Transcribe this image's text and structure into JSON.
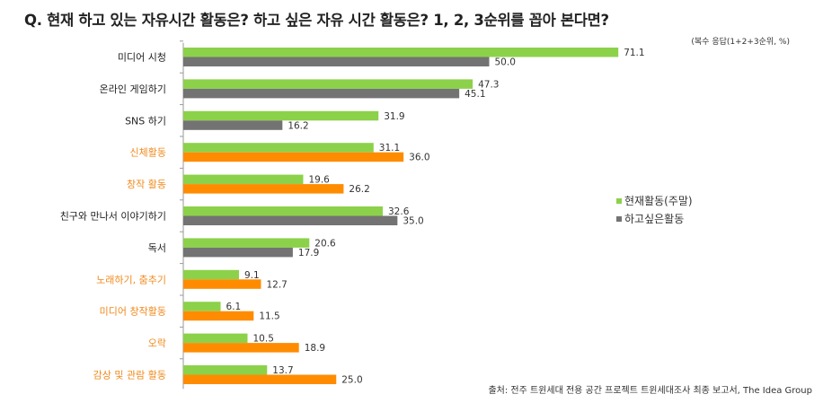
{
  "title": "Q. 현재 하고 있는 자유시간 활동은? 하고 싶은 자유 시간 활동은? 1, 2, 3순위를 꼽아 본다면?",
  "note": "(복수 응답(1+2+3순위, %)",
  "source": "출처: 전주 트윈세대 전용 공간 프로젝트 트윈세대조사 최종 보고서, The Idea Group",
  "colors": {
    "current": "#8cd14a",
    "wanted_gray": "#737373",
    "wanted_orange": "#ff8c00",
    "label_normal": "#222222",
    "label_highlight": "#f08a1c",
    "axis": "#9a9a9a"
  },
  "chart_data": {
    "type": "bar",
    "orientation": "horizontal",
    "categories": [
      "미디어 시청",
      "온라인 게임하기",
      "SNS 하기",
      "신체활동",
      "창작 활동",
      "친구와 만나서 이야기하기",
      "독서",
      "노래하기, 춤추기",
      "미디어 창작활동",
      "오락",
      "감상 및 관람 활동"
    ],
    "highlighted_categories": [
      "신체활동",
      "창작 활동",
      "노래하기, 춤추기",
      "미디어 창작활동",
      "오락",
      "감상 및 관람 활동"
    ],
    "series": [
      {
        "name": "현재활동(주말)",
        "values": [
          71.1,
          47.3,
          31.9,
          31.1,
          19.6,
          32.6,
          20.6,
          9.1,
          6.1,
          10.5,
          13.7
        ]
      },
      {
        "name": "하고싶은활동",
        "values": [
          50.0,
          45.1,
          16.2,
          36.0,
          26.2,
          35.0,
          17.9,
          12.7,
          11.5,
          18.9,
          25.0
        ]
      }
    ],
    "value_labels": [
      [
        "71.1",
        "47.3",
        "31.9",
        "31.1",
        "19.6",
        "32.6",
        "20.6",
        "9.1",
        "6.1",
        "10.5",
        "13.7"
      ],
      [
        "50.0",
        "45.1",
        "16.2",
        "36.0",
        "26.2",
        "35.0",
        "17.9",
        "12.7",
        "11.5",
        "18.9",
        "25.0"
      ]
    ],
    "xlim": [
      0,
      75
    ],
    "legend_position": "right",
    "grid": false
  }
}
